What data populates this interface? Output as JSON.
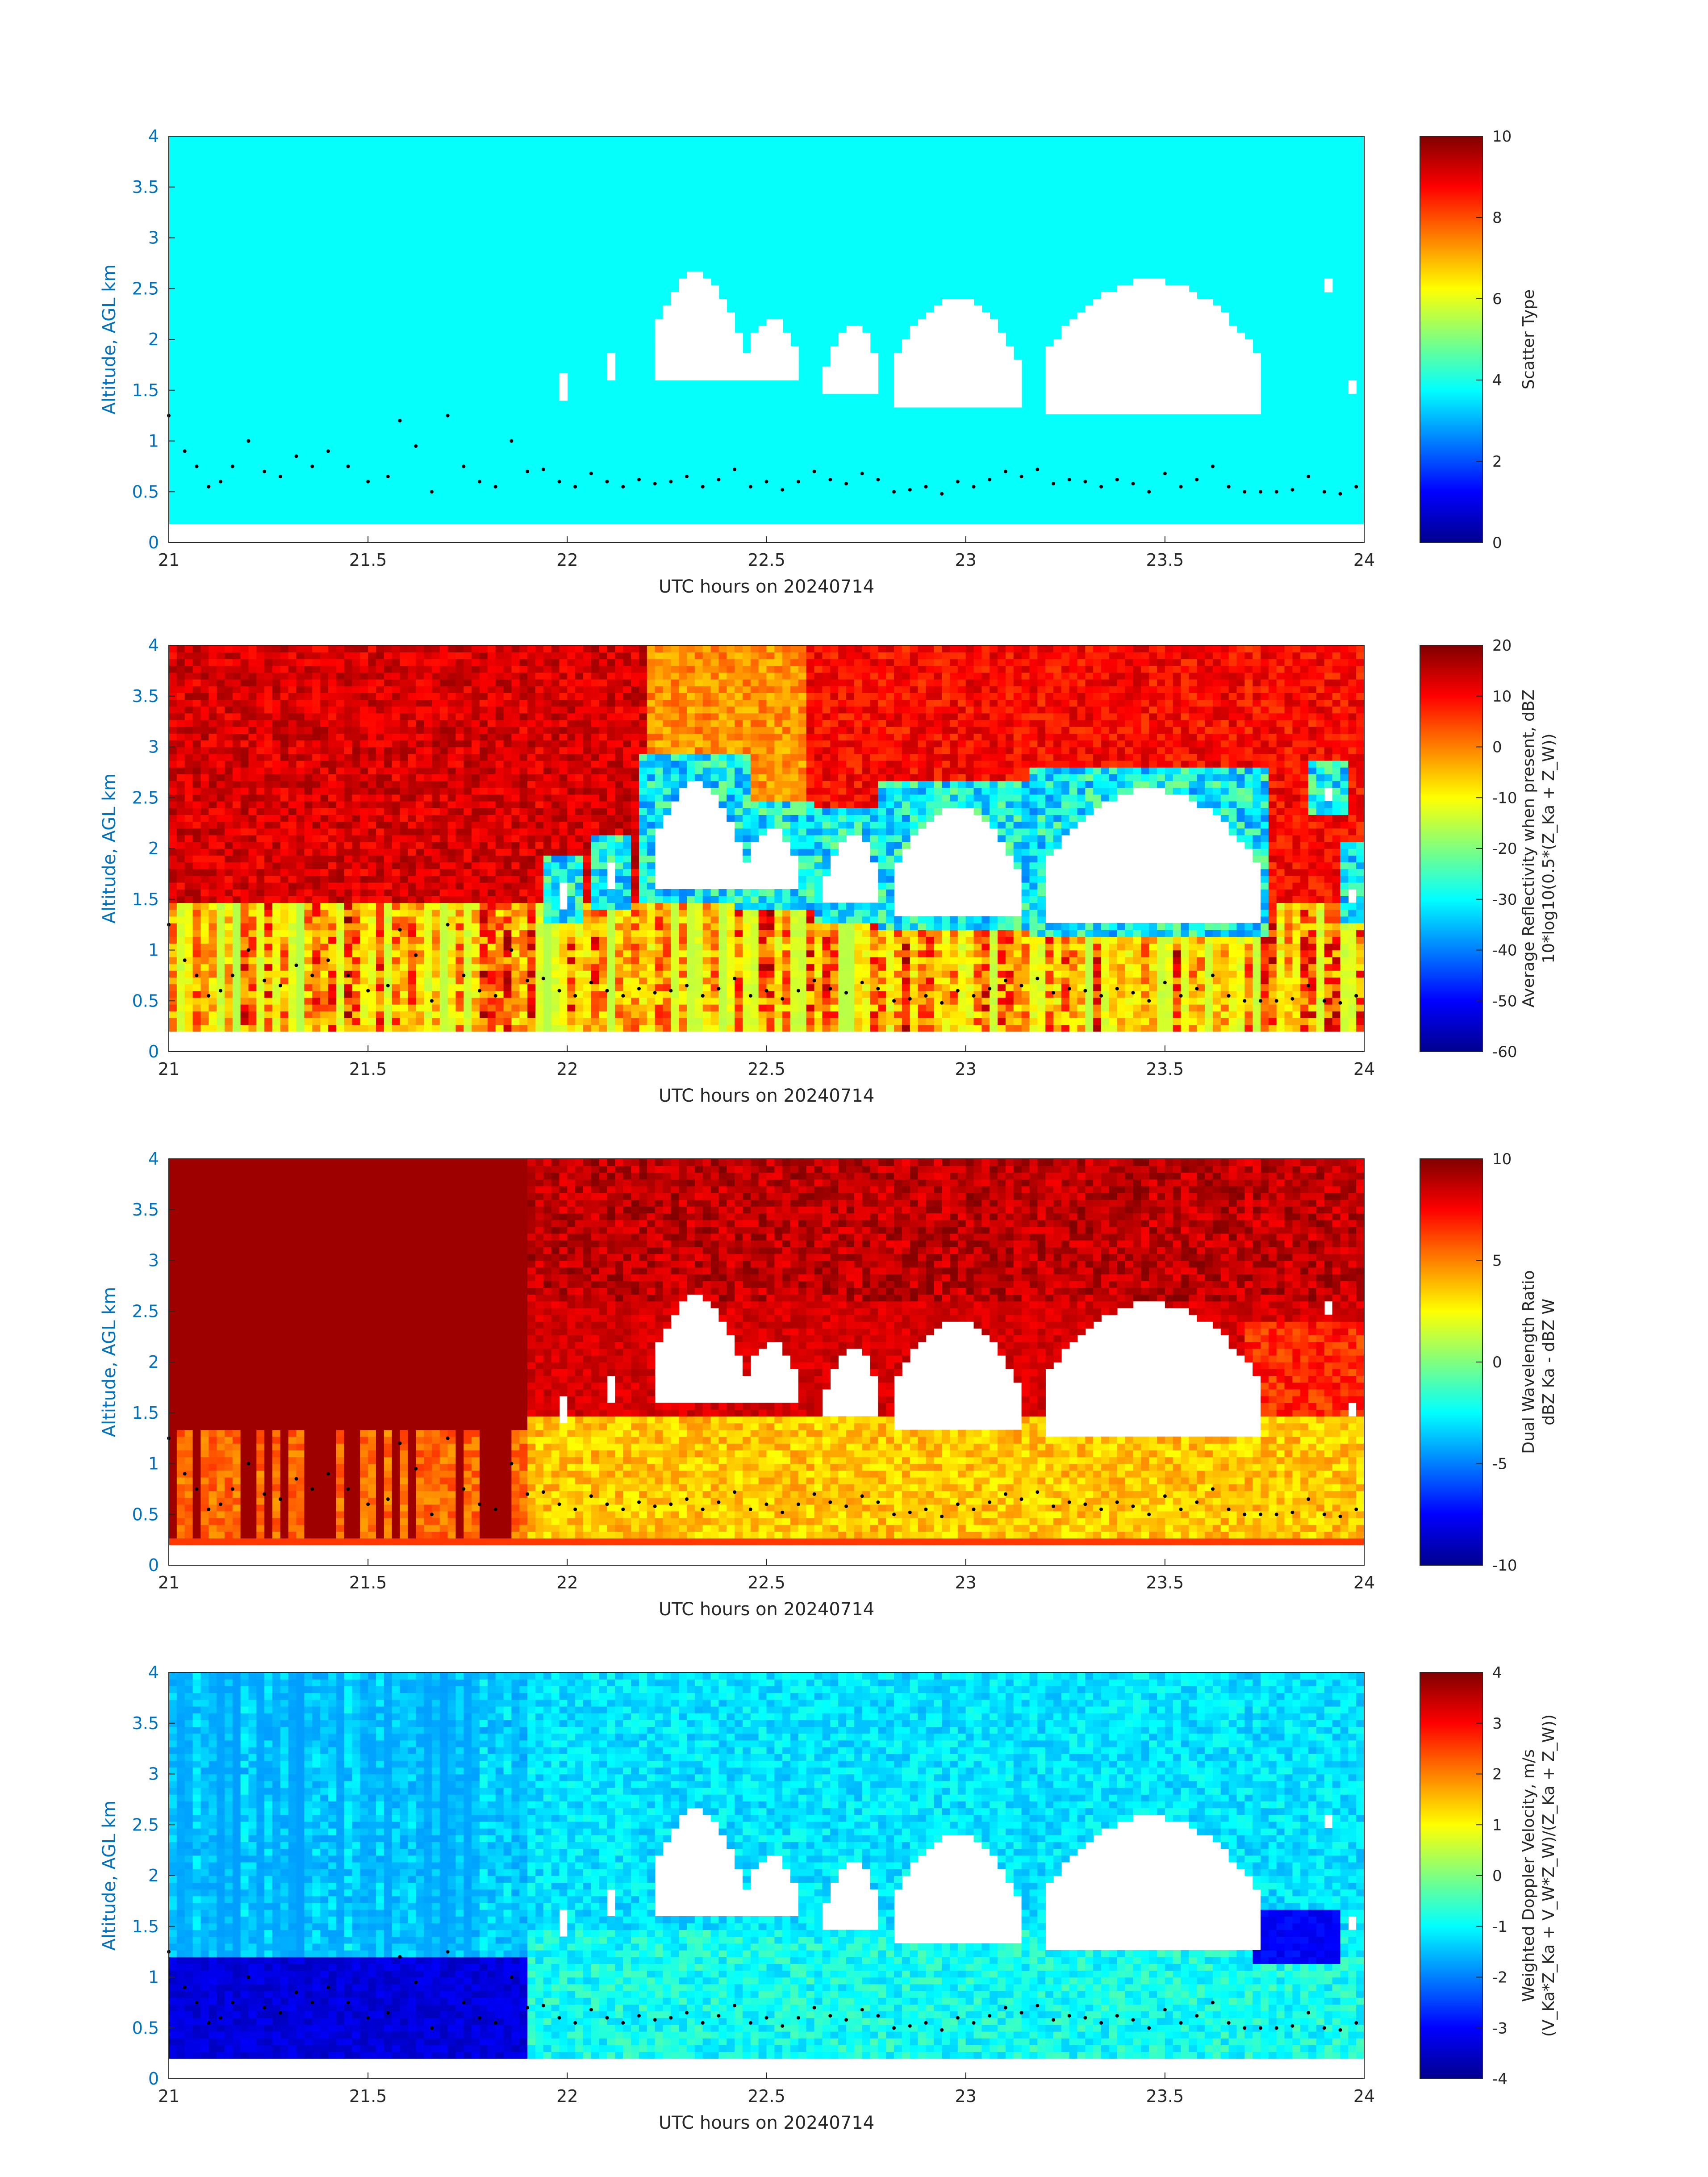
{
  "figure": {
    "panels": [
      {
        "id": "scatter-type",
        "ylabel": "Altitude, AGL km",
        "xlabel": "UTC hours on 20240714",
        "colorbar_label_line1": "Scatter Type",
        "colorbar_label_line2": "",
        "colorbar_ticks": [
          "0",
          "2",
          "4",
          "6",
          "8",
          "10"
        ],
        "clim": [
          0,
          10
        ]
      },
      {
        "id": "avg-reflectivity",
        "ylabel": "Altitude, AGL km",
        "xlabel": "UTC hours on 20240714",
        "colorbar_label_line1": "Average Reflectivity when present, dBZ",
        "colorbar_label_line2": "10*log10(0.5*(Z_Ka + Z_W))",
        "colorbar_ticks": [
          "-60",
          "-50",
          "-40",
          "-30",
          "-20",
          "-10",
          "0",
          "10",
          "20"
        ],
        "clim": [
          -60,
          20
        ]
      },
      {
        "id": "dual-wavelength-ratio",
        "ylabel": "Altitude, AGL km",
        "xlabel": "UTC hours on 20240714",
        "colorbar_label_line1": "Dual Wavelength Ratio",
        "colorbar_label_line2": "dBZ Ka - dBZ W",
        "colorbar_ticks": [
          "-10",
          "-5",
          "0",
          "5",
          "10"
        ],
        "clim": [
          -10,
          10
        ]
      },
      {
        "id": "weighted-doppler-velocity",
        "ylabel": "Altitude, AGL km",
        "xlabel": "UTC hours on 20240714",
        "colorbar_label_line1": "Weighted Doppler Velocity, m/s",
        "colorbar_label_line2": "(V_Ka*Z_Ka + V_W*Z_W)/(Z_Ka + Z_W))",
        "colorbar_ticks": [
          "-4",
          "-3",
          "-2",
          "-1",
          "0",
          "1",
          "2",
          "3",
          "4"
        ],
        "clim": [
          -4,
          4
        ]
      }
    ]
  },
  "chart_data": {
    "type": "heatmap",
    "x": {
      "label": "UTC hours on 20240714",
      "lim": [
        21,
        24
      ],
      "ticks": [
        "21",
        "21.5",
        "22",
        "22.5",
        "23",
        "23.5",
        "24"
      ]
    },
    "y": {
      "label": "Altitude, AGL km",
      "lim": [
        0,
        4
      ],
      "ticks": [
        "0",
        "0.5",
        "1",
        "1.5",
        "2",
        "2.5",
        "3",
        "3.5",
        "4"
      ]
    },
    "data_bottom_km": 0.18,
    "colormap": "jet",
    "cloud_layers": [
      {
        "x0": 21.98,
        "x1": 22.0,
        "base": 1.4,
        "top": 1.65
      },
      {
        "x0": 22.1,
        "x1": 22.12,
        "base": 1.57,
        "top": 1.85
      },
      {
        "x0": 22.22,
        "x1": 22.43,
        "base": 1.6,
        "top": 2.65
      },
      {
        "x0": 22.45,
        "x1": 22.58,
        "base": 1.57,
        "top": 2.2
      },
      {
        "x0": 22.65,
        "x1": 22.78,
        "base": 1.45,
        "top": 2.15
      },
      {
        "x0": 22.82,
        "x1": 23.13,
        "base": 1.35,
        "top": 2.4
      },
      {
        "x0": 23.2,
        "x1": 23.73,
        "base": 1.3,
        "top": 2.58
      },
      {
        "x0": 23.9,
        "x1": 23.92,
        "base": 2.45,
        "top": 2.6
      },
      {
        "x0": 23.97,
        "x1": 23.99,
        "base": 1.45,
        "top": 1.8
      }
    ],
    "cloud_base_points": {
      "x": [
        21.0,
        21.04,
        21.07,
        21.1,
        21.13,
        21.16,
        21.2,
        21.24,
        21.28,
        21.32,
        21.36,
        21.4,
        21.45,
        21.5,
        21.55,
        21.58,
        21.62,
        21.66,
        21.7,
        21.74,
        21.78,
        21.82,
        21.86,
        21.9,
        21.94,
        21.98,
        22.02,
        22.06,
        22.1,
        22.14,
        22.18,
        22.22,
        22.26,
        22.3,
        22.34,
        22.38,
        22.42,
        22.46,
        22.5,
        22.54,
        22.58,
        22.62,
        22.66,
        22.7,
        22.74,
        22.78,
        22.82,
        22.86,
        22.9,
        22.94,
        22.98,
        23.02,
        23.06,
        23.1,
        23.14,
        23.18,
        23.22,
        23.26,
        23.3,
        23.34,
        23.38,
        23.42,
        23.46,
        23.5,
        23.54,
        23.58,
        23.62,
        23.66,
        23.7,
        23.74,
        23.78,
        23.82,
        23.86,
        23.9,
        23.94,
        23.98
      ],
      "y": [
        1.25,
        0.9,
        0.75,
        0.55,
        0.6,
        0.75,
        1.0,
        0.7,
        0.65,
        0.85,
        0.75,
        0.9,
        0.75,
        0.6,
        0.65,
        1.2,
        0.95,
        0.5,
        1.25,
        0.75,
        0.6,
        0.55,
        1.0,
        0.7,
        0.72,
        0.6,
        0.55,
        0.68,
        0.6,
        0.55,
        0.62,
        0.58,
        0.6,
        0.65,
        0.55,
        0.62,
        0.72,
        0.55,
        0.6,
        0.52,
        0.6,
        0.7,
        0.62,
        0.58,
        0.68,
        0.62,
        0.5,
        0.52,
        0.55,
        0.48,
        0.6,
        0.55,
        0.62,
        0.7,
        0.65,
        0.72,
        0.58,
        0.62,
        0.6,
        0.55,
        0.62,
        0.58,
        0.5,
        0.68,
        0.55,
        0.62,
        0.75,
        0.55,
        0.5,
        0.5,
        0.5,
        0.52,
        0.65,
        0.5,
        0.48,
        0.55
      ]
    }
  }
}
